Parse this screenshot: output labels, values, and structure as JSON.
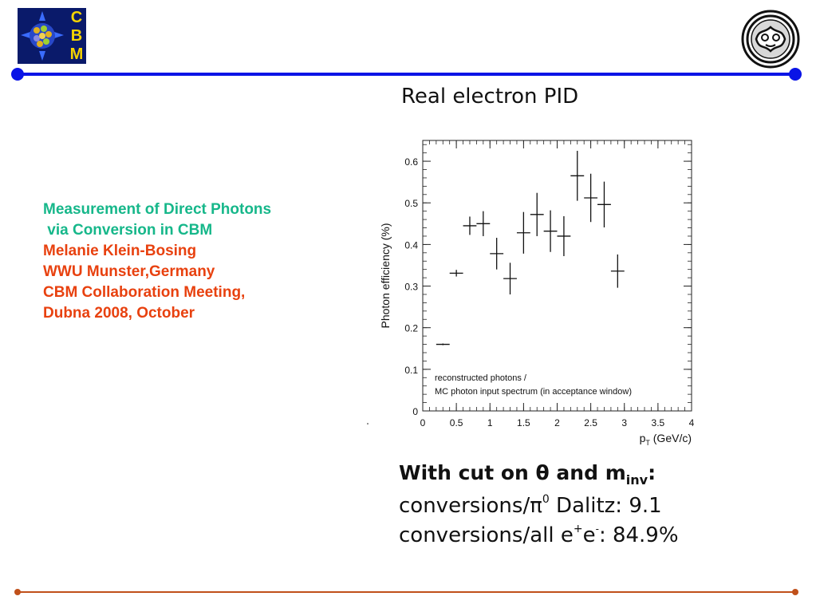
{
  "logo": {
    "letters": [
      "C",
      "B",
      "M"
    ]
  },
  "title_block": {
    "line1": "Measurement of Direct Photons",
    "line2": " via Conversion in CBM",
    "line3": "Melanie Klein-Bosing",
    "line4": "WWU Munster,Germany",
    "line5": "CBM Collaboration Meeting,",
    "line6": "Dubna 2008, October"
  },
  "plot_title": "Real electron PID",
  "cuts": {
    "heading_prefix": "With cut on θ and m",
    "heading_sub": "inv",
    "heading_suffix": ":",
    "line1_prefix": "conversions/π",
    "line1_sup": "0",
    "line1_suffix": " Dalitz: 9.1",
    "line2_prefix": "conversions/all e",
    "line2_sup1": "+",
    "line2_mid": "e",
    "line2_sup2": "-",
    "line2_suffix": ": 84.9%"
  },
  "colors": {
    "rule_blue": "#0a14e6",
    "rule_brown": "#c0501a",
    "title_green": "#16b78a",
    "title_red": "#e8410f",
    "logo_bg": "#0a1a6a",
    "logo_letters": "#f5d400"
  },
  "chart_data": {
    "type": "scatter",
    "title": "",
    "xlabel_main": "p",
    "xlabel_sub": "T",
    "xlabel_unit": " (GeV/c)",
    "ylabel": "Photon efficiency (%)",
    "xlim": [
      0,
      4
    ],
    "ylim": [
      0,
      0.65
    ],
    "xticks": [
      0,
      0.5,
      1,
      1.5,
      2,
      2.5,
      3,
      3.5,
      4
    ],
    "xtick_labels": [
      "0",
      "0.5",
      "1",
      "1.5",
      "2",
      "2.5",
      "3",
      "3.5",
      "4"
    ],
    "yticks": [
      0,
      0.1,
      0.2,
      0.3,
      0.4,
      0.5,
      0.6
    ],
    "ytick_labels": [
      "0",
      "0.1",
      "0.2",
      "0.3",
      "0.4",
      "0.5",
      "0.6"
    ],
    "annotation_lines": [
      "reconstructed photons /",
      "MC photon input spectrum (in acceptance window)"
    ],
    "grid": false,
    "series": [
      {
        "points": [
          {
            "x": 0.3,
            "y": 0.16,
            "xerr": 0.1,
            "yerr": 0.002
          },
          {
            "x": 0.5,
            "y": 0.331,
            "xerr": 0.1,
            "yerr": 0.008
          },
          {
            "x": 0.7,
            "y": 0.445,
            "xerr": 0.1,
            "yerr": 0.022
          },
          {
            "x": 0.9,
            "y": 0.45,
            "xerr": 0.1,
            "yerr": 0.03
          },
          {
            "x": 1.1,
            "y": 0.378,
            "xerr": 0.1,
            "yerr": 0.038
          },
          {
            "x": 1.3,
            "y": 0.318,
            "xerr": 0.1,
            "yerr": 0.038
          },
          {
            "x": 1.5,
            "y": 0.428,
            "xerr": 0.1,
            "yerr": 0.05
          },
          {
            "x": 1.7,
            "y": 0.472,
            "xerr": 0.1,
            "yerr": 0.052
          },
          {
            "x": 1.9,
            "y": 0.432,
            "xerr": 0.1,
            "yerr": 0.05
          },
          {
            "x": 2.1,
            "y": 0.42,
            "xerr": 0.1,
            "yerr": 0.048
          },
          {
            "x": 2.3,
            "y": 0.565,
            "xerr": 0.1,
            "yerr": 0.06
          },
          {
            "x": 2.5,
            "y": 0.512,
            "xerr": 0.1,
            "yerr": 0.058
          },
          {
            "x": 2.7,
            "y": 0.496,
            "xerr": 0.1,
            "yerr": 0.055
          },
          {
            "x": 2.9,
            "y": 0.336,
            "xerr": 0.1,
            "yerr": 0.04
          }
        ]
      }
    ]
  }
}
